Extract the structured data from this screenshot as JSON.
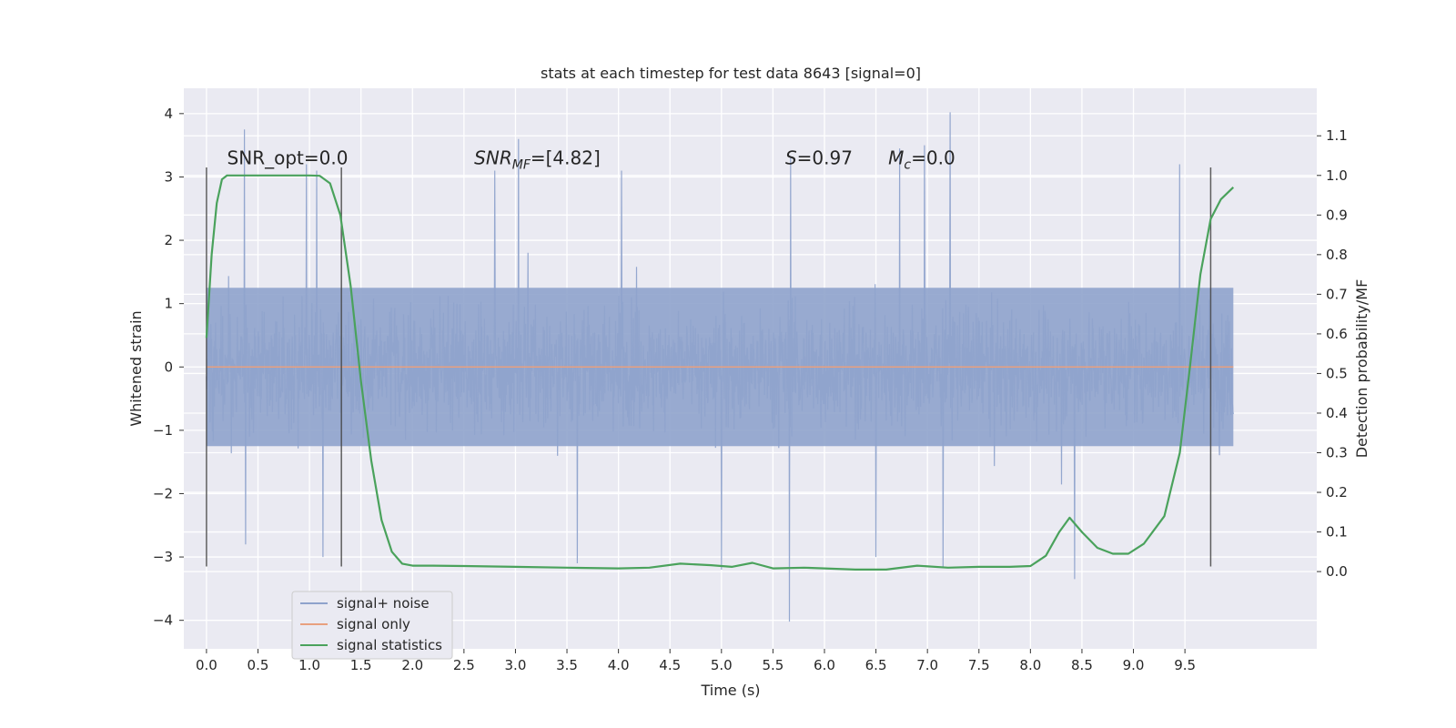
{
  "chart_data": {
    "type": "line",
    "title": "stats at each timestep for test data 8643 [signal=0]",
    "xlabel": "Time (s)",
    "ylabel_left": "Whitened strain",
    "ylabel_right": "Detection probability/MF",
    "xlim": [
      -0.22,
      10.78
    ],
    "ylim_left": [
      -4.45,
      4.4
    ],
    "ylim_right": [
      -0.195,
      1.22
    ],
    "xticks": [
      0.0,
      0.5,
      1.0,
      1.5,
      2.0,
      2.5,
      3.0,
      3.5,
      4.0,
      4.5,
      5.0,
      5.5,
      6.0,
      6.5,
      7.0,
      7.5,
      8.0,
      8.5,
      9.0,
      9.5
    ],
    "xtick_labels": [
      "0.0",
      "0.5",
      "1.0",
      "1.5",
      "2.0",
      "2.5",
      "3.0",
      "3.5",
      "4.0",
      "4.5",
      "5.0",
      "5.5",
      "6.0",
      "6.5",
      "7.0",
      "7.5",
      "8.0",
      "8.5",
      "9.0",
      "9.5"
    ],
    "yticks_left": [
      4,
      3,
      2,
      1,
      0,
      -1,
      -2,
      -3,
      -4
    ],
    "ytick_labels_left": [
      "4",
      "3",
      "2",
      "1",
      "0",
      "−1",
      "−2",
      "−3",
      "−4"
    ],
    "yticks_right": [
      1.1,
      1.0,
      0.9,
      0.8,
      0.7,
      0.6,
      0.5,
      0.4,
      0.3,
      0.2,
      0.1,
      0.0
    ],
    "ytick_labels_right": [
      "1.1",
      "1.0",
      "0.9",
      "0.8",
      "0.7",
      "0.6",
      "0.5",
      "0.4",
      "0.3",
      "0.2",
      "0.1",
      "0.0"
    ],
    "grid": true,
    "legend_position": "lower-left",
    "series": [
      {
        "name": "signal+ noise",
        "axis": "left",
        "color": "#8fa3cc",
        "x_range": [
          0.0,
          9.97
        ],
        "envelope": "dense noise, typical band about ±1.3, peaks up to about 3.8 and down to about -4.0",
        "peaks_high": [
          [
            0.37,
            3.75
          ],
          [
            1.07,
            3.1
          ],
          [
            3.03,
            3.6
          ],
          [
            4.03,
            3.1
          ],
          [
            7.22,
            4.02
          ],
          [
            6.73,
            3.45
          ],
          [
            5.67,
            3.3
          ],
          [
            0.97,
            3.2
          ],
          [
            2.8,
            3.1
          ],
          [
            6.97,
            3.5
          ],
          [
            9.45,
            3.2
          ]
        ],
        "peaks_low": [
          [
            5.66,
            -4.02
          ],
          [
            8.43,
            -3.35
          ],
          [
            5.0,
            -3.2
          ],
          [
            1.13,
            -3.0
          ],
          [
            7.15,
            -3.15
          ],
          [
            0.38,
            -2.8
          ],
          [
            3.6,
            -3.1
          ],
          [
            6.5,
            -3.0
          ]
        ]
      },
      {
        "name": "signal only",
        "axis": "left",
        "color": "#e8a07f",
        "x": [
          0.0,
          9.97
        ],
        "values": [
          0.0,
          0.0
        ]
      },
      {
        "name": "signal statistics",
        "axis": "right",
        "color": "#4aa25c",
        "x": [
          0.0,
          0.05,
          0.1,
          0.15,
          0.2,
          0.3,
          0.5,
          0.8,
          1.0,
          1.1,
          1.2,
          1.3,
          1.4,
          1.5,
          1.6,
          1.7,
          1.8,
          1.9,
          2.0,
          2.2,
          2.5,
          3.0,
          3.5,
          4.0,
          4.3,
          4.6,
          4.9,
          5.1,
          5.3,
          5.5,
          5.8,
          6.0,
          6.3,
          6.6,
          6.9,
          7.2,
          7.5,
          7.8,
          8.0,
          8.15,
          8.28,
          8.38,
          8.5,
          8.65,
          8.8,
          8.95,
          9.1,
          9.3,
          9.45,
          9.55,
          9.65,
          9.75,
          9.85,
          9.97
        ],
        "values": [
          0.59,
          0.8,
          0.93,
          0.99,
          1.0,
          1.0,
          1.0,
          1.0,
          1.0,
          0.999,
          0.98,
          0.9,
          0.72,
          0.48,
          0.28,
          0.13,
          0.05,
          0.02,
          0.015,
          0.015,
          0.014,
          0.012,
          0.01,
          0.008,
          0.01,
          0.02,
          0.016,
          0.012,
          0.022,
          0.008,
          0.01,
          0.008,
          0.005,
          0.005,
          0.015,
          0.01,
          0.012,
          0.012,
          0.014,
          0.04,
          0.1,
          0.136,
          0.1,
          0.06,
          0.045,
          0.045,
          0.07,
          0.14,
          0.3,
          0.52,
          0.75,
          0.89,
          0.94,
          0.97
        ]
      }
    ],
    "vertical_lines": [
      {
        "x": 0.0,
        "ymin": -3.15,
        "ymax": 3.15
      },
      {
        "x": 1.31,
        "ymin": -3.15,
        "ymax": 3.15
      },
      {
        "x": 9.75,
        "ymin": -3.15,
        "ymax": 3.15
      }
    ],
    "annotations": [
      {
        "kind": "plain",
        "text": "SNR_opt=0.0",
        "x": 0.2,
        "y": 3.2
      },
      {
        "kind": "sub",
        "main": "SNR",
        "sub": "MF",
        "rest": "=[4.82]",
        "x": 2.6,
        "y": 3.2
      },
      {
        "kind": "italic",
        "main": "S",
        "rest": "=0.97",
        "x": 5.62,
        "y": 3.2
      },
      {
        "kind": "sub",
        "main": "M",
        "sub": "c",
        "rest": "=0.0",
        "x": 6.62,
        "y": 3.2
      }
    ]
  }
}
